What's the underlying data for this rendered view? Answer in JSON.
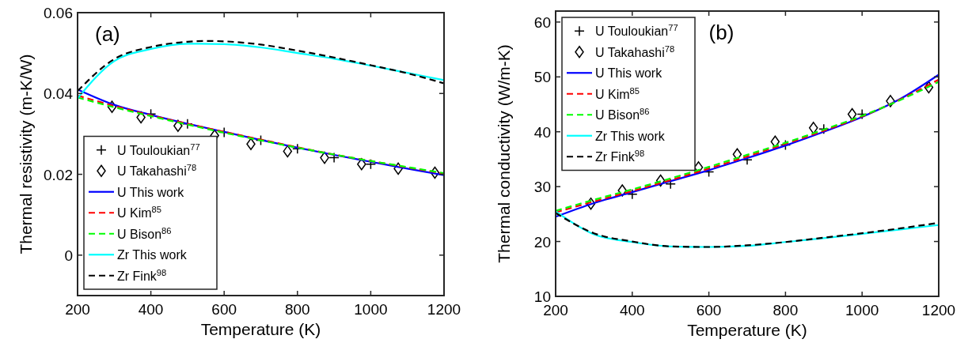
{
  "chart_data": [
    {
      "type": "line",
      "xlabel": "Temperature (K)",
      "ylabel": "Thermal resistivity (m-K/W)",
      "xlim": [
        200,
        1200
      ],
      "xticks": [
        200,
        400,
        600,
        800,
        1000,
        1200
      ],
      "ylim": [
        -0.01,
        0.06
      ],
      "yticks": [
        0,
        0.02,
        0.04,
        0.06
      ],
      "legend": "bottom left",
      "annotations": [
        "(a)"
      ],
      "series": [
        {
          "name": "U Touloukian$^{77}$",
          "type": "scatter",
          "marker": "cross",
          "color": "#000000",
          "x": [
            400,
            500,
            600,
            700,
            800,
            900,
            1000
          ],
          "values": [
            0.0349,
            0.0325,
            0.0304,
            0.0284,
            0.0263,
            0.0241,
            0.0225
          ]
        },
        {
          "name": "U Takahashi$^{78}$",
          "type": "scatter",
          "marker": "diamond",
          "color": "#000000",
          "x": [
            294,
            373,
            474,
            574,
            673,
            773,
            874,
            975,
            1075,
            1175
          ],
          "values": [
            0.0367,
            0.0341,
            0.032,
            0.0296,
            0.0275,
            0.0257,
            0.0241,
            0.0225,
            0.0214,
            0.0204
          ]
        },
        {
          "name": "U This work",
          "line_style": "solid",
          "color": "#0000ff",
          "x": [
            200,
            300,
            400,
            500,
            600,
            700,
            800,
            900,
            1000,
            1100,
            1200
          ],
          "values": [
            0.041,
            0.0372,
            0.0347,
            0.0325,
            0.0305,
            0.0285,
            0.0266,
            0.0248,
            0.0231,
            0.0214,
            0.0198
          ]
        },
        {
          "name": "U Kim$^{85}$",
          "line_style": "dashed",
          "color": "#ff0000",
          "x": [
            200,
            300,
            400,
            500,
            600,
            700,
            800,
            900,
            1000,
            1100,
            1200
          ],
          "values": [
            0.0395,
            0.0369,
            0.0346,
            0.0325,
            0.0305,
            0.0286,
            0.0267,
            0.0249,
            0.0233,
            0.0217,
            0.0202
          ]
        },
        {
          "name": "U Bison$^{86}$",
          "line_style": "dashed",
          "color": "#00ff00",
          "x": [
            200,
            300,
            400,
            500,
            600,
            700,
            800,
            900,
            1000,
            1100,
            1200
          ],
          "values": [
            0.039,
            0.0366,
            0.0344,
            0.0323,
            0.0303,
            0.0284,
            0.0266,
            0.0249,
            0.0233,
            0.0218,
            0.0203
          ]
        },
        {
          "name": "Zr This work",
          "line_style": "solid",
          "color": "#00ffff",
          "x": [
            200,
            300,
            400,
            500,
            600,
            700,
            800,
            900,
            1000,
            1100,
            1200
          ],
          "values": [
            0.0388,
            0.048,
            0.051,
            0.0523,
            0.0522,
            0.0514,
            0.05,
            0.0486,
            0.0469,
            0.0451,
            0.0433
          ]
        },
        {
          "name": "Zr Fink$^{98}$",
          "line_style": "dashed",
          "color": "#000000",
          "x": [
            200,
            300,
            400,
            500,
            550,
            600,
            700,
            800,
            900,
            1000,
            1100,
            1200
          ],
          "values": [
            0.0406,
            0.0485,
            0.0515,
            0.0528,
            0.053,
            0.0529,
            0.0521,
            0.0506,
            0.0489,
            0.047,
            0.045,
            0.0425
          ]
        }
      ]
    },
    {
      "type": "line",
      "xlabel": "Temperature (K)",
      "ylabel": "Thermal conductivity (W/m-K)",
      "xlim": [
        200,
        1200
      ],
      "xticks": [
        200,
        400,
        600,
        800,
        1000,
        1200
      ],
      "ylim": [
        10,
        62
      ],
      "yticks": [
        10,
        20,
        30,
        40,
        50,
        60
      ],
      "legend": "top left",
      "annotations": [
        "(b)"
      ],
      "series": [
        {
          "name": "U Touloukian$^{77}$",
          "type": "scatter",
          "marker": "cross",
          "color": "#000000",
          "x": [
            400,
            500,
            600,
            700,
            800,
            900,
            1000
          ],
          "values": [
            28.6,
            30.5,
            32.7,
            34.9,
            37.6,
            40.5,
            43.2
          ]
        },
        {
          "name": "U Takahashi$^{78}$",
          "type": "scatter",
          "marker": "diamond",
          "color": "#000000",
          "x": [
            292,
            374,
            474,
            573,
            674,
            773,
            873,
            974,
            1074,
            1174
          ],
          "values": [
            26.9,
            29.3,
            31.1,
            33.5,
            35.9,
            38.2,
            40.7,
            43.2,
            45.6,
            48.1
          ]
        },
        {
          "name": "U This work",
          "line_style": "solid",
          "color": "#0000ff",
          "x": [
            200,
            300,
            400,
            500,
            600,
            700,
            800,
            900,
            1000,
            1100,
            1200
          ],
          "values": [
            24.5,
            27,
            29,
            31,
            33,
            35.2,
            37.5,
            40,
            42.7,
            46,
            50.4
          ]
        },
        {
          "name": "U Kim$^{85}$",
          "line_style": "dashed",
          "color": "#ff0000",
          "x": [
            200,
            300,
            400,
            500,
            600,
            700,
            800,
            900,
            1000,
            1100,
            1200
          ],
          "values": [
            25.3,
            27.3,
            29.2,
            31.2,
            33.3,
            35.5,
            37.8,
            40.2,
            42.8,
            45.9,
            49.5
          ]
        },
        {
          "name": "U Bison$^{86}$",
          "line_style": "dashed",
          "color": "#00ff00",
          "x": [
            200,
            300,
            400,
            500,
            600,
            700,
            800,
            900,
            1000,
            1100,
            1200
          ],
          "values": [
            25.6,
            27.6,
            29.5,
            31.5,
            33.6,
            35.8,
            38,
            40.4,
            42.9,
            45.8,
            49.1
          ]
        },
        {
          "name": "Zr This work",
          "line_style": "solid",
          "color": "#00ffff",
          "x": [
            200,
            300,
            400,
            500,
            600,
            700,
            800,
            900,
            1000,
            1100,
            1200
          ],
          "values": [
            25.5,
            21.3,
            19.9,
            19.1,
            19,
            19.2,
            19.9,
            20.6,
            21.4,
            22.2,
            23
          ]
        },
        {
          "name": "Zr Fink$^{98}$",
          "line_style": "dashed",
          "color": "#000000",
          "x": [
            200,
            300,
            400,
            500,
            600,
            700,
            800,
            900,
            1000,
            1100,
            1200
          ],
          "values": [
            25.2,
            21.5,
            20,
            19.1,
            19,
            19.3,
            19.9,
            20.7,
            21.5,
            22.4,
            23.4
          ]
        }
      ]
    }
  ]
}
